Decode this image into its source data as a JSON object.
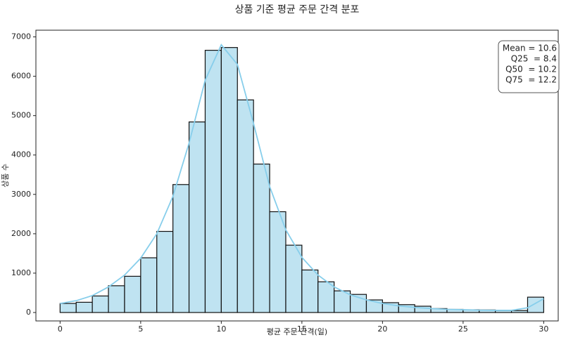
{
  "chart_data": {
    "type": "histogram",
    "title": "상품 기준 평균 주문 간격 분포",
    "xlabel": "평균 주문 간격(일)",
    "ylabel": "상품 수",
    "bins": [
      0,
      1,
      2,
      3,
      4,
      5,
      6,
      7,
      8,
      9,
      10,
      11,
      12,
      13,
      14,
      15,
      16,
      17,
      18,
      19,
      20,
      21,
      22,
      23,
      24,
      25,
      26,
      27,
      28,
      29,
      30
    ],
    "counts": [
      230,
      260,
      420,
      680,
      920,
      1390,
      2060,
      3250,
      4840,
      6660,
      6730,
      5400,
      3770,
      2560,
      1710,
      1080,
      780,
      550,
      460,
      320,
      250,
      200,
      160,
      100,
      80,
      70,
      65,
      50,
      50,
      390
    ],
    "color": "#bfe3f1",
    "edgecolor": "#111111",
    "kde": {
      "color": "#87ceeb",
      "x": [
        0,
        1,
        2,
        3,
        4,
        5,
        6,
        7,
        8,
        9,
        10,
        11,
        12,
        13,
        14,
        15,
        16,
        17,
        18,
        19,
        20,
        21,
        22,
        23,
        24,
        25,
        26,
        27,
        28,
        29,
        30
      ],
      "values": [
        230,
        300,
        430,
        650,
        950,
        1380,
        2000,
        2950,
        4300,
        5900,
        6800,
        6300,
        4800,
        3200,
        2100,
        1400,
        950,
        650,
        450,
        320,
        230,
        170,
        130,
        100,
        80,
        70,
        60,
        55,
        55,
        120,
        350
      ]
    },
    "annotations": [
      "Mean = 10.6",
      "Q25  = 8.4",
      "Q50  = 10.2",
      "Q75  = 12.2"
    ],
    "xlim": [
      -1.5,
      30.9
    ],
    "ylim": [
      -214,
      7170
    ],
    "xticks": [
      0,
      5,
      10,
      15,
      20,
      25,
      30
    ],
    "yticks": [
      0,
      1000,
      2000,
      3000,
      4000,
      5000,
      6000,
      7000
    ]
  }
}
